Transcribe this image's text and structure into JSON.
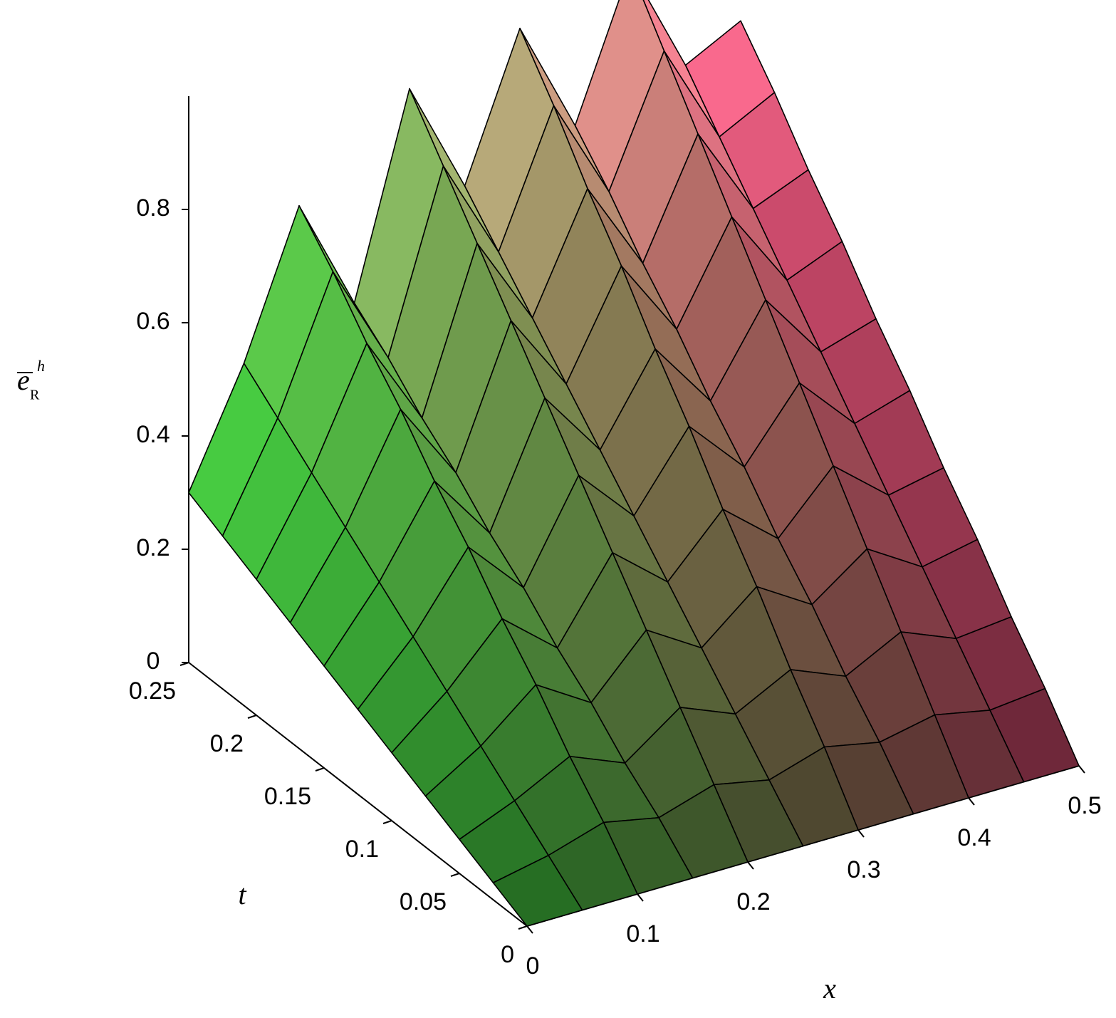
{
  "chart_data": {
    "type": "surface",
    "xlabel": "x",
    "ylabel": "t",
    "zlabel": {
      "text": "e",
      "sub": "R",
      "sup": "h"
    },
    "x": [
      0,
      0.05,
      0.1,
      0.15,
      0.2,
      0.25,
      0.3,
      0.35,
      0.4,
      0.45,
      0.5
    ],
    "y": [
      0,
      0.025,
      0.05,
      0.075,
      0.1,
      0.125,
      0.15,
      0.175,
      0.2,
      0.225,
      0.25
    ],
    "z": [
      [
        0,
        0,
        0,
        0,
        0,
        0,
        0,
        0,
        0,
        0,
        0
      ],
      [
        0.03,
        0.05,
        0.08,
        0.06,
        0.09,
        0.07,
        0.1,
        0.08,
        0.1,
        0.08,
        0.09
      ],
      [
        0.06,
        0.1,
        0.15,
        0.11,
        0.18,
        0.14,
        0.19,
        0.15,
        0.2,
        0.16,
        0.17
      ],
      [
        0.09,
        0.15,
        0.23,
        0.17,
        0.27,
        0.21,
        0.29,
        0.23,
        0.3,
        0.24,
        0.26
      ],
      [
        0.12,
        0.2,
        0.3,
        0.22,
        0.36,
        0.28,
        0.38,
        0.3,
        0.4,
        0.32,
        0.34
      ],
      [
        0.15,
        0.25,
        0.38,
        0.28,
        0.45,
        0.35,
        0.48,
        0.38,
        0.5,
        0.4,
        0.43
      ],
      [
        0.18,
        0.3,
        0.45,
        0.33,
        0.54,
        0.42,
        0.57,
        0.45,
        0.6,
        0.48,
        0.51
      ],
      [
        0.21,
        0.35,
        0.53,
        0.39,
        0.63,
        0.49,
        0.67,
        0.53,
        0.7,
        0.56,
        0.6
      ],
      [
        0.24,
        0.4,
        0.6,
        0.44,
        0.72,
        0.56,
        0.76,
        0.6,
        0.8,
        0.64,
        0.68
      ],
      [
        0.27,
        0.45,
        0.68,
        0.5,
        0.81,
        0.63,
        0.86,
        0.68,
        0.9,
        0.72,
        0.77
      ],
      [
        0.3,
        0.5,
        0.75,
        0.55,
        0.9,
        0.7,
        0.95,
        0.75,
        1.0,
        0.8,
        0.85
      ]
    ],
    "xlim": [
      0,
      0.5
    ],
    "ylim": [
      0,
      0.25
    ],
    "zlim": [
      0,
      1
    ],
    "xticks": [
      0,
      0.1,
      0.2,
      0.3,
      0.4,
      0.5
    ],
    "yticks": [
      0,
      0.05,
      0.1,
      0.15,
      0.2,
      0.25
    ],
    "zticks": [
      0,
      0.2,
      0.4,
      0.6,
      0.8
    ],
    "colors": [
      "#48f048",
      "#f04c7c"
    ]
  }
}
